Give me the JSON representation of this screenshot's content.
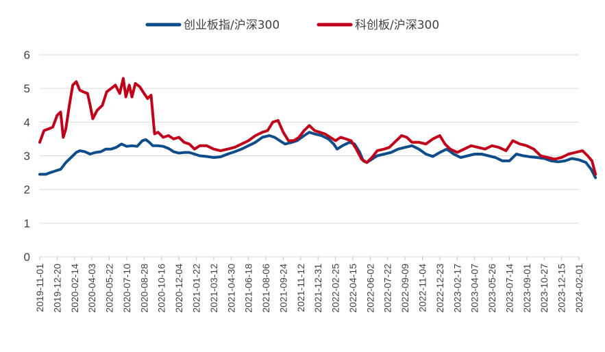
{
  "chart_data": {
    "type": "line",
    "title": "",
    "xlabel": "",
    "ylabel": "",
    "ylim": [
      0,
      6
    ],
    "yticks": [
      0,
      1,
      2,
      3,
      4,
      5,
      6
    ],
    "grid": "horizontal",
    "legend_position": "top-center",
    "x_tick_labels": [
      "2019-11-01",
      "2019-12-20",
      "2020-02-14",
      "2020-04-03",
      "2020-05-22",
      "2020-07-10",
      "2020-08-28",
      "2020-10-16",
      "2020-12-04",
      "2021-01-22",
      "2021-03-12",
      "2021-04-30",
      "2021-06-18",
      "2021-08-06",
      "2021-09-24",
      "2021-11-12",
      "2021-12-31",
      "2022-02-25",
      "2022-04-15",
      "2022-06-02",
      "2022-07-22",
      "2022-09-09",
      "2022-11-04",
      "2022-12-23",
      "2023-02-17",
      "2023-04-07",
      "2023-05-26",
      "2023-07-14",
      "2023-09-01",
      "2023-10-27",
      "2023-12-15",
      "2024-02-01"
    ],
    "series": [
      {
        "name": "创业板指/沪深300",
        "color": "#0E4C8A",
        "points": [
          [
            0,
            2.45
          ],
          [
            0.35,
            2.45
          ],
          [
            0.6,
            2.5
          ],
          [
            0.9,
            2.55
          ],
          [
            1.2,
            2.6
          ],
          [
            1.5,
            2.8
          ],
          [
            1.8,
            2.95
          ],
          [
            2.1,
            3.1
          ],
          [
            2.3,
            3.15
          ],
          [
            2.6,
            3.12
          ],
          [
            2.9,
            3.05
          ],
          [
            3.2,
            3.1
          ],
          [
            3.5,
            3.12
          ],
          [
            3.8,
            3.2
          ],
          [
            4.1,
            3.2
          ],
          [
            4.4,
            3.25
          ],
          [
            4.7,
            3.35
          ],
          [
            5.0,
            3.28
          ],
          [
            5.3,
            3.3
          ],
          [
            5.6,
            3.28
          ],
          [
            5.9,
            3.45
          ],
          [
            6.1,
            3.48
          ],
          [
            6.3,
            3.4
          ],
          [
            6.5,
            3.3
          ],
          [
            6.8,
            3.3
          ],
          [
            7.1,
            3.28
          ],
          [
            7.4,
            3.22
          ],
          [
            7.7,
            3.12
          ],
          [
            8.0,
            3.08
          ],
          [
            8.3,
            3.1
          ],
          [
            8.6,
            3.1
          ],
          [
            8.9,
            3.05
          ],
          [
            9.2,
            3.0
          ],
          [
            9.6,
            2.98
          ],
          [
            10.0,
            2.95
          ],
          [
            10.4,
            2.97
          ],
          [
            10.8,
            3.05
          ],
          [
            11.2,
            3.12
          ],
          [
            11.6,
            3.2
          ],
          [
            12.0,
            3.3
          ],
          [
            12.4,
            3.4
          ],
          [
            12.8,
            3.55
          ],
          [
            13.2,
            3.6
          ],
          [
            13.5,
            3.55
          ],
          [
            13.8,
            3.45
          ],
          [
            14.1,
            3.35
          ],
          [
            14.5,
            3.4
          ],
          [
            14.8,
            3.45
          ],
          [
            15.2,
            3.6
          ],
          [
            15.5,
            3.7
          ],
          [
            15.8,
            3.65
          ],
          [
            16.2,
            3.6
          ],
          [
            16.6,
            3.5
          ],
          [
            16.9,
            3.35
          ],
          [
            17.1,
            3.2
          ],
          [
            17.4,
            3.3
          ],
          [
            17.8,
            3.4
          ],
          [
            18.1,
            3.35
          ],
          [
            18.4,
            3.1
          ],
          [
            18.6,
            2.85
          ],
          [
            18.8,
            2.8
          ],
          [
            19.1,
            2.9
          ],
          [
            19.4,
            3.0
          ],
          [
            19.8,
            3.05
          ],
          [
            20.2,
            3.1
          ],
          [
            20.6,
            3.2
          ],
          [
            21.0,
            3.25
          ],
          [
            21.4,
            3.3
          ],
          [
            21.8,
            3.2
          ],
          [
            22.2,
            3.05
          ],
          [
            22.6,
            2.98
          ],
          [
            23.0,
            3.1
          ],
          [
            23.4,
            3.2
          ],
          [
            23.8,
            3.05
          ],
          [
            24.2,
            2.95
          ],
          [
            24.6,
            3.0
          ],
          [
            25.0,
            3.05
          ],
          [
            25.4,
            3.05
          ],
          [
            25.8,
            3.0
          ],
          [
            26.2,
            2.95
          ],
          [
            26.6,
            2.85
          ],
          [
            27.0,
            2.85
          ],
          [
            27.4,
            3.05
          ],
          [
            27.8,
            3.0
          ],
          [
            28.2,
            2.97
          ],
          [
            28.6,
            2.95
          ],
          [
            29.0,
            2.92
          ],
          [
            29.4,
            2.85
          ],
          [
            29.8,
            2.82
          ],
          [
            30.2,
            2.85
          ],
          [
            30.6,
            2.92
          ],
          [
            31.0,
            2.88
          ],
          [
            31.4,
            2.8
          ],
          [
            31.7,
            2.6
          ],
          [
            31.95,
            2.35
          ]
        ]
      },
      {
        "name": "科创板/沪深300",
        "color": "#C0001A",
        "points": [
          [
            0,
            3.4
          ],
          [
            0.25,
            3.75
          ],
          [
            0.5,
            3.8
          ],
          [
            0.75,
            3.85
          ],
          [
            1.0,
            4.2
          ],
          [
            1.2,
            4.3
          ],
          [
            1.35,
            3.55
          ],
          [
            1.5,
            3.8
          ],
          [
            1.7,
            4.5
          ],
          [
            1.9,
            5.1
          ],
          [
            2.1,
            5.2
          ],
          [
            2.3,
            4.95
          ],
          [
            2.5,
            4.9
          ],
          [
            2.75,
            4.85
          ],
          [
            2.9,
            4.5
          ],
          [
            3.05,
            4.1
          ],
          [
            3.3,
            4.35
          ],
          [
            3.6,
            4.5
          ],
          [
            3.85,
            4.9
          ],
          [
            4.1,
            5.0
          ],
          [
            4.35,
            5.1
          ],
          [
            4.6,
            4.85
          ],
          [
            4.8,
            5.3
          ],
          [
            4.95,
            4.75
          ],
          [
            5.15,
            5.1
          ],
          [
            5.3,
            4.75
          ],
          [
            5.5,
            5.15
          ],
          [
            5.75,
            5.05
          ],
          [
            6.0,
            4.85
          ],
          [
            6.2,
            4.7
          ],
          [
            6.4,
            4.8
          ],
          [
            6.6,
            3.65
          ],
          [
            6.8,
            3.7
          ],
          [
            7.1,
            3.55
          ],
          [
            7.4,
            3.6
          ],
          [
            7.7,
            3.5
          ],
          [
            8.0,
            3.55
          ],
          [
            8.3,
            3.4
          ],
          [
            8.6,
            3.35
          ],
          [
            8.9,
            3.2
          ],
          [
            9.2,
            3.3
          ],
          [
            9.6,
            3.3
          ],
          [
            10.0,
            3.2
          ],
          [
            10.4,
            3.15
          ],
          [
            10.8,
            3.2
          ],
          [
            11.2,
            3.25
          ],
          [
            11.6,
            3.35
          ],
          [
            12.0,
            3.45
          ],
          [
            12.4,
            3.6
          ],
          [
            12.8,
            3.7
          ],
          [
            13.1,
            3.75
          ],
          [
            13.4,
            4.0
          ],
          [
            13.7,
            4.05
          ],
          [
            14.0,
            3.7
          ],
          [
            14.3,
            3.45
          ],
          [
            14.6,
            3.45
          ],
          [
            14.9,
            3.55
          ],
          [
            15.2,
            3.75
          ],
          [
            15.5,
            3.9
          ],
          [
            15.8,
            3.75
          ],
          [
            16.1,
            3.7
          ],
          [
            16.4,
            3.65
          ],
          [
            16.7,
            3.55
          ],
          [
            17.0,
            3.45
          ],
          [
            17.3,
            3.55
          ],
          [
            17.6,
            3.5
          ],
          [
            17.9,
            3.45
          ],
          [
            18.2,
            3.2
          ],
          [
            18.5,
            2.9
          ],
          [
            18.8,
            2.8
          ],
          [
            19.1,
            2.95
          ],
          [
            19.4,
            3.15
          ],
          [
            19.8,
            3.2
          ],
          [
            20.1,
            3.25
          ],
          [
            20.4,
            3.4
          ],
          [
            20.8,
            3.6
          ],
          [
            21.1,
            3.55
          ],
          [
            21.4,
            3.4
          ],
          [
            21.8,
            3.4
          ],
          [
            22.2,
            3.35
          ],
          [
            22.6,
            3.5
          ],
          [
            23.0,
            3.6
          ],
          [
            23.3,
            3.35
          ],
          [
            23.6,
            3.2
          ],
          [
            24.0,
            3.1
          ],
          [
            24.4,
            3.2
          ],
          [
            24.8,
            3.3
          ],
          [
            25.2,
            3.25
          ],
          [
            25.6,
            3.2
          ],
          [
            26.0,
            3.3
          ],
          [
            26.4,
            3.25
          ],
          [
            26.8,
            3.15
          ],
          [
            27.2,
            3.45
          ],
          [
            27.6,
            3.35
          ],
          [
            28.0,
            3.3
          ],
          [
            28.4,
            3.2
          ],
          [
            28.8,
            3.0
          ],
          [
            29.2,
            2.95
          ],
          [
            29.6,
            2.9
          ],
          [
            30.0,
            2.95
          ],
          [
            30.4,
            3.05
          ],
          [
            30.8,
            3.1
          ],
          [
            31.2,
            3.15
          ],
          [
            31.5,
            3.0
          ],
          [
            31.75,
            2.85
          ],
          [
            31.95,
            2.45
          ]
        ]
      }
    ]
  }
}
